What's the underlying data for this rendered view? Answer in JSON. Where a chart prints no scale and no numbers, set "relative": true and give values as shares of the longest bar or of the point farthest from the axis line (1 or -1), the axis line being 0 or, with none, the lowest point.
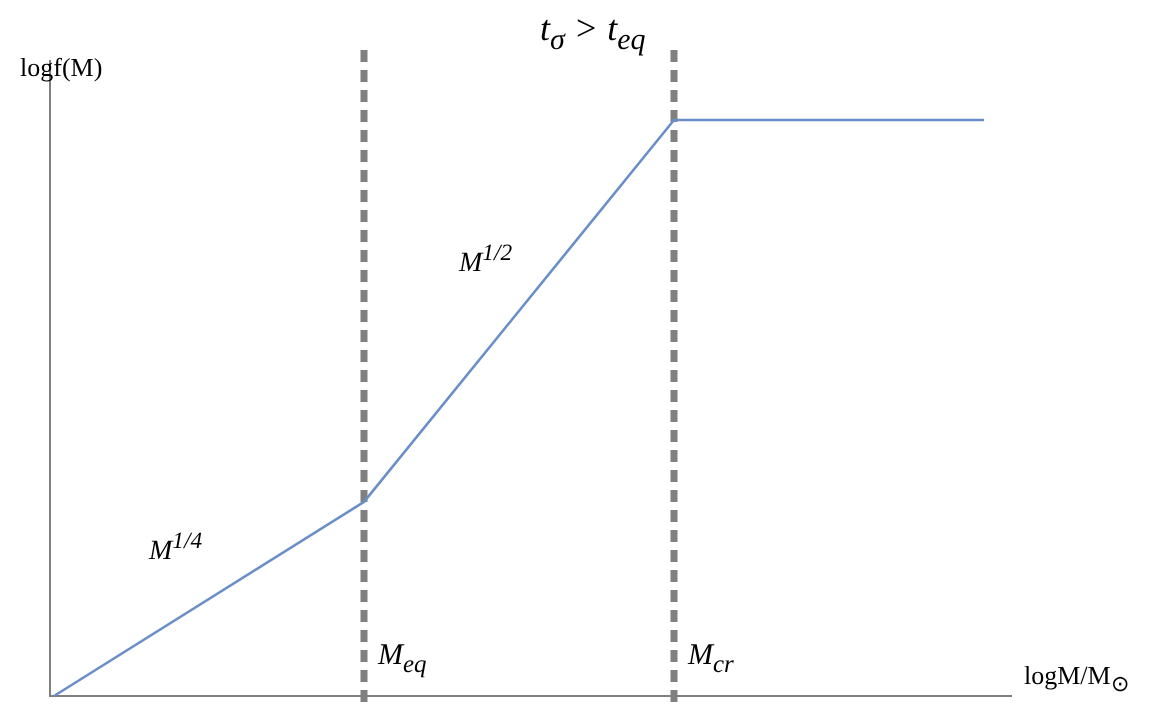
{
  "chart_data": {
    "type": "line",
    "title": "t$_{σ}$ > t$_{eq}$",
    "xlabel": "logM/M$_{⊙}$",
    "ylabel": "logf(M)",
    "categories": [
      null,
      "M$_{eq}$",
      "M$_{cr}$",
      null
    ],
    "relative": true,
    "marker": "none",
    "series": [
      {
        "color": "#6a8fc8",
        "values": [
          0,
          0.337,
          1,
          1
        ]
      }
    ],
    "ref_lines": [
      {
        "axis": "x",
        "value": "M$_{eq}$",
        "color": "#808080",
        "line_style": "dashed"
      },
      {
        "axis": "x",
        "value": "M$_{cr}$",
        "color": "#808080",
        "line_style": "dashed"
      }
    ],
    "annotations": [
      "M$^{1/4}$",
      "M$^{1/2}$"
    ]
  }
}
